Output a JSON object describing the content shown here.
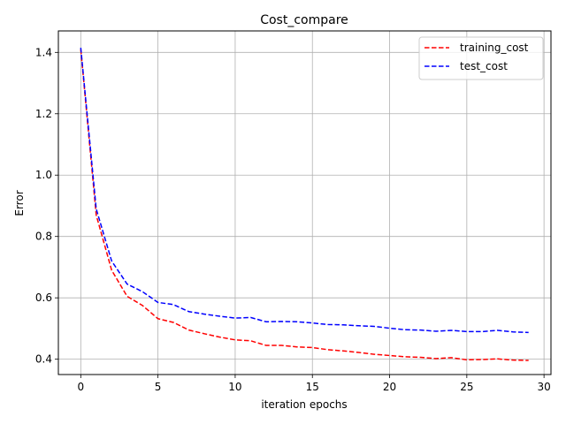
{
  "chart_data": {
    "type": "line",
    "title": "Cost_compare",
    "xlabel": "iteration epochs",
    "ylabel": "Error",
    "xlim": [
      -1.45,
      30.45
    ],
    "ylim": [
      0.35,
      1.47
    ],
    "xticks": [
      0,
      5,
      10,
      15,
      20,
      25,
      30
    ],
    "yticks": [
      0.4,
      0.6,
      0.8,
      1.0,
      1.2,
      1.4
    ],
    "ytick_labels": [
      "0.4",
      "0.6",
      "0.8",
      "1.0",
      "1.2",
      "1.4"
    ],
    "grid": true,
    "legend_position": "top-right",
    "x": [
      0,
      1,
      2,
      3,
      4,
      5,
      6,
      7,
      8,
      9,
      10,
      11,
      12,
      13,
      14,
      15,
      16,
      17,
      18,
      19,
      20,
      21,
      22,
      23,
      24,
      25,
      26,
      27,
      28,
      29
    ],
    "series": [
      {
        "name": "training_cost",
        "color": "#ff0000",
        "linestyle": "dashed",
        "values": [
          1.41,
          0.87,
          0.69,
          0.605,
          0.575,
          0.532,
          0.52,
          0.495,
          0.483,
          0.472,
          0.463,
          0.46,
          0.445,
          0.445,
          0.44,
          0.438,
          0.431,
          0.427,
          0.422,
          0.416,
          0.412,
          0.408,
          0.406,
          0.402,
          0.405,
          0.398,
          0.399,
          0.401,
          0.397,
          0.396
        ]
      },
      {
        "name": "test_cost",
        "color": "#0000ff",
        "linestyle": "dashed",
        "values": [
          1.415,
          0.89,
          0.72,
          0.645,
          0.62,
          0.585,
          0.578,
          0.555,
          0.547,
          0.54,
          0.534,
          0.536,
          0.522,
          0.523,
          0.522,
          0.518,
          0.513,
          0.512,
          0.509,
          0.507,
          0.501,
          0.496,
          0.495,
          0.491,
          0.494,
          0.49,
          0.49,
          0.494,
          0.489,
          0.487
        ]
      }
    ]
  }
}
